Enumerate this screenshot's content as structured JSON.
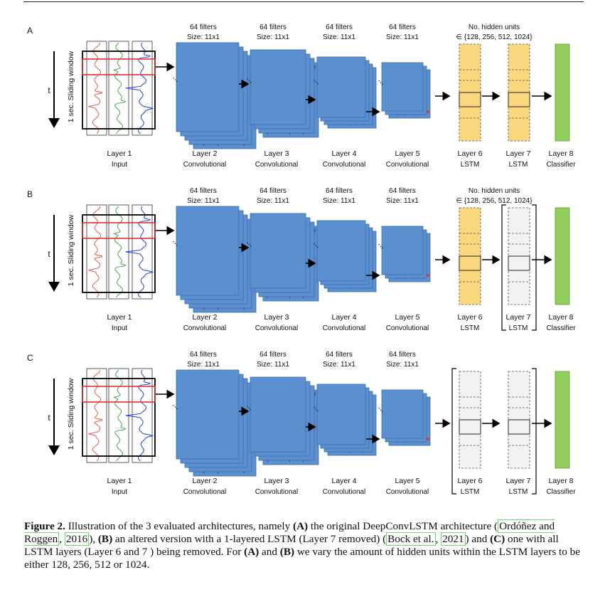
{
  "panels": [
    {
      "letter": "A",
      "time_label": "t",
      "window_label": "1 sec. Sliding window",
      "conv_headers": [
        {
          "line1": "64 filters",
          "line2": "Size: 11x1"
        },
        {
          "line1": "64 filters",
          "line2": "Size: 11x1"
        },
        {
          "line1": "64 filters",
          "line2": "Size: 11x1"
        },
        {
          "line1": "64 filters",
          "line2": "Size: 11x1"
        }
      ],
      "hidden_header": {
        "line1": "No. hidden units",
        "line2": "∈ {128, 256, 512, 1024}"
      },
      "layer6_removed": false,
      "layer7_removed": false,
      "layers": [
        {
          "name": "Layer 1",
          "type": "Input"
        },
        {
          "name": "Layer 2",
          "type": "Convolutional"
        },
        {
          "name": "Layer 3",
          "type": "Convolutional"
        },
        {
          "name": "Layer 4",
          "type": "Convolutional"
        },
        {
          "name": "Layer 5",
          "type": "Convolutional"
        },
        {
          "name": "Layer 6",
          "type": "LSTM"
        },
        {
          "name": "Layer 7",
          "type": "LSTM"
        },
        {
          "name": "Layer 8",
          "type": "Classifier"
        }
      ]
    },
    {
      "letter": "B",
      "time_label": "t",
      "window_label": "1 sec. Sliding window",
      "conv_headers": [
        {
          "line1": "64 filters",
          "line2": "Size: 11x1"
        },
        {
          "line1": "64 filters",
          "line2": "Size: 11x1"
        },
        {
          "line1": "64 filters",
          "line2": "Size: 11x1"
        },
        {
          "line1": "64 filters",
          "line2": "Size: 11x1"
        }
      ],
      "hidden_header": {
        "line1": "No. hidden units",
        "line2": "∈ {128, 256, 512, 1024}"
      },
      "layer6_removed": false,
      "layer7_removed": true,
      "layers": [
        {
          "name": "Layer 1",
          "type": "Input"
        },
        {
          "name": "Layer 2",
          "type": "Convolutional"
        },
        {
          "name": "Layer 3",
          "type": "Convolutional"
        },
        {
          "name": "Layer 4",
          "type": "Convolutional"
        },
        {
          "name": "Layer 5",
          "type": "Convolutional"
        },
        {
          "name": "Layer 6",
          "type": "LSTM"
        },
        {
          "name": "Layer 7",
          "type": "LSTM"
        },
        {
          "name": "Layer 8",
          "type": "Classifier"
        }
      ]
    },
    {
      "letter": "C",
      "time_label": "t",
      "window_label": "1 sec. Sliding window",
      "conv_headers": [
        {
          "line1": "64 filters",
          "line2": "Size: 11x1"
        },
        {
          "line1": "64 filters",
          "line2": "Size: 11x1"
        },
        {
          "line1": "64 filters",
          "line2": "Size: 11x1"
        },
        {
          "line1": "64 filters",
          "line2": "Size: 11x1"
        }
      ],
      "hidden_header": null,
      "layer6_removed": true,
      "layer7_removed": true,
      "layers": [
        {
          "name": "Layer 1",
          "type": "Input"
        },
        {
          "name": "Layer 2",
          "type": "Convolutional"
        },
        {
          "name": "Layer 3",
          "type": "Convolutional"
        },
        {
          "name": "Layer 4",
          "type": "Convolutional"
        },
        {
          "name": "Layer 5",
          "type": "Convolutional"
        },
        {
          "name": "Layer 6",
          "type": "LSTM"
        },
        {
          "name": "Layer 7",
          "type": "LSTM"
        },
        {
          "name": "Layer 8",
          "type": "Classifier"
        }
      ]
    }
  ],
  "caption": {
    "label": "Figure 2.",
    "t1": " Illustration of the 3 evaluated architectures, namely ",
    "a": "(A)",
    "t2": " the original DeepConvLSTM architecture (",
    "ref1": "Ordóñez and Roggen",
    "t3": ", ",
    "ref1y": "2016",
    "t4": "), ",
    "b": "(B)",
    "t5": " an altered version with a 1-layered LSTM (Layer 7 removed) (",
    "ref2": "Bock et al.",
    "t6": ", ",
    "ref2y": "2021",
    "t7": ") and ",
    "c": "(C)",
    "t8": " one with all LSTM layers (Layer 6 and 7 ) being removed. For ",
    "a2": "(A)",
    "t9": " and ",
    "b2": "(B)",
    "t10": " we vary the amount of hidden units within the LSTM layers to be either 128, 256, 512 or 1024."
  },
  "colors": {
    "conv_fill": "#5b8fcf",
    "conv_stroke": "#3b6fae",
    "lstm_fill": "#f9d77e",
    "removed_fill": "#f2f2f2",
    "classifier_fill": "#8fcf5a",
    "highlight": "#e03030",
    "signal1": "#e06050",
    "signal2": "#50a050",
    "signal3": "#2040e0"
  }
}
